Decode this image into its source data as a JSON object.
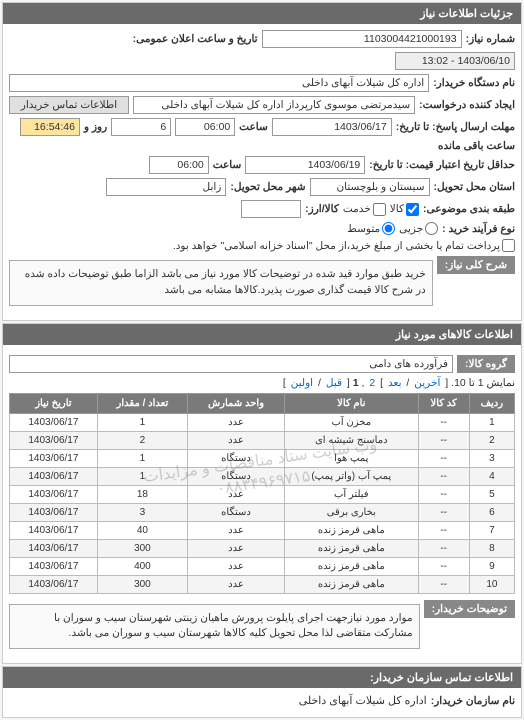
{
  "header": {
    "title": "جزئیات اطلاعات نیاز"
  },
  "top": {
    "req_no_label": "شماره نیاز:",
    "req_no": "1103004421000193",
    "announce_label": "تاریخ و ساعت اعلان عمومی:",
    "announce_value": "1403/06/10 - 13:02",
    "buyer_label": "نام دستگاه خریدار:",
    "buyer_value": "اداره کل شیلات آبهای داخلی",
    "requester_label": "ایجاد کننده درخواست:",
    "requester_value": "سیدمرتضی موسوی کارپرداز اداره کل شیلات آبهای داخلی",
    "contact_btn": "اطلاعات تماس خریدار",
    "deadline_label": "مهلت ارسال پاسخ: تا تاریخ:",
    "deadline_date": "1403/06/17",
    "time_lbl": "ساعت",
    "deadline_time": "06:00",
    "days_lbl": "روز و",
    "days_value": "6",
    "remain_lbl": "ساعت باقی مانده",
    "remain_value": "16:54:46",
    "valid_label": "حداقل تاریخ اعتبار قیمت: تا تاریخ:",
    "valid_date": "1403/06/19",
    "valid_time": "06:00",
    "province_label": "استان محل تحویل:",
    "province_value": "سیستان و بلوچستان",
    "city_label": "شهر محل تحویل:",
    "city_value": "زابل",
    "priority_label": "طبقه بندی موضوعی:",
    "chk_goods": "کالا",
    "chk_service": "خدمت",
    "currency_label": "کالا/ارز:",
    "buy_type_label": "نوع فرآیند خرید :",
    "opt_low": "جزیی",
    "opt_mid": "متوسط",
    "pay_note": "پرداخت تمام یا بخشی از مبلغ خرید،از محل \"اسناد خزانه اسلامی\" خواهد بود.",
    "desc_label": "شرح کلی نیاز:",
    "desc_text": "خرید طبق موارد قید شده در توضیحات کالا مورد نیاز می باشد الزاما طبق توضیحات داده شده در شرح کالا قیمت گذاری صورت پذیرد.کالاها مشابه می باشد"
  },
  "goods": {
    "section_title": "اطلاعات کالاهای مورد نیاز",
    "group_label": "گروه کالا:",
    "group_value": "فرآورده های دامی",
    "pager_text": "نمایش 1 تا 10.",
    "pager_links": [
      "آخرین",
      "بعد",
      "2",
      "1",
      "قبل",
      "اولین"
    ],
    "columns": [
      "ردیف",
      "کد کالا",
      "نام کالا",
      "واحد شمارش",
      "تعداد / مقدار",
      "تاریخ نیاز"
    ],
    "rows": [
      [
        "1",
        "--",
        "مخزن آب",
        "عدد",
        "1",
        "1403/06/17"
      ],
      [
        "2",
        "--",
        "دماسنج شیشه ای",
        "عدد",
        "2",
        "1403/06/17"
      ],
      [
        "3",
        "--",
        "پمپ هوا",
        "دستگاه",
        "1",
        "1403/06/17"
      ],
      [
        "4",
        "--",
        "پمپ آب (واتر پمپ)",
        "دستگاه",
        "1",
        "1403/06/17"
      ],
      [
        "5",
        "--",
        "فیلتر آب",
        "عدد",
        "18",
        "1403/06/17"
      ],
      [
        "6",
        "--",
        "بخاری برقی",
        "دستگاه",
        "3",
        "1403/06/17"
      ],
      [
        "7",
        "--",
        "ماهی قرمز زنده",
        "عدد",
        "40",
        "1403/06/17"
      ],
      [
        "8",
        "--",
        "ماهی قرمز زنده",
        "عدد",
        "300",
        "1403/06/17"
      ],
      [
        "9",
        "--",
        "ماهی قرمز زنده",
        "عدد",
        "400",
        "1403/06/17"
      ],
      [
        "10",
        "--",
        "ماهی قرمز زنده",
        "عدد",
        "300",
        "1403/06/17"
      ]
    ],
    "watermark_l1": "وب سایت ستاد مناقصات و مزایدات",
    "watermark_l2": "۰۸۸۳۴۹۶۹۷۱۵"
  },
  "buyer_notes": {
    "label": "توضیحات خریدار:",
    "text": "موارد مورد نیازجهت اجرای پایلوت پرورش ماهیان زینتی شهرستان سیب و سوران با مشارکت متقاضی لذا محل تحویل کلیه کالاها شهرستان سیب و سوران می باشد."
  },
  "contact": {
    "section_title": "اطلاعات تماس سازمان خریدار:",
    "org_label": "نام سازمان خریدار:",
    "org_value": "اداره کل شیلات آبهای داخلی"
  }
}
